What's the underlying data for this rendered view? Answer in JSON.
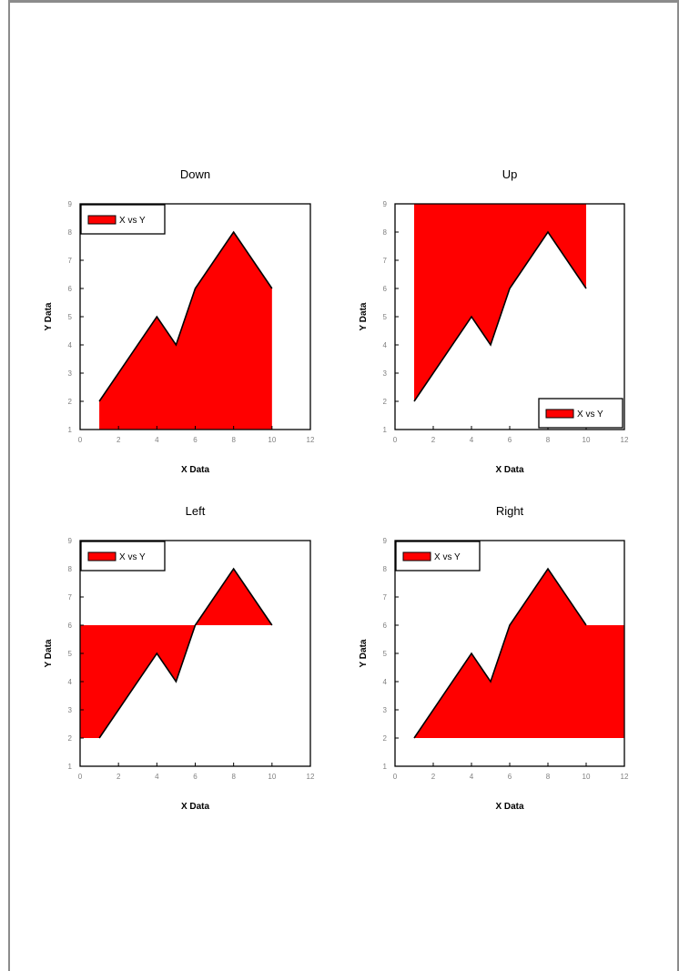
{
  "colors": {
    "fill": "#ff0000",
    "line": "#000000",
    "tick_text": "#808080",
    "frame": "#000000"
  },
  "chart_data": [
    {
      "type": "area",
      "title": "Down",
      "fill_direction": "down",
      "xlabel": "X Data",
      "ylabel": "Y Data",
      "xlim": [
        0,
        12
      ],
      "ylim": [
        1,
        9
      ],
      "xticks": [
        "0",
        "2",
        "4",
        "6",
        "8",
        "10",
        "12"
      ],
      "yticks": [
        "1",
        "2",
        "3",
        "4",
        "5",
        "6",
        "7",
        "8",
        "9"
      ],
      "legend": {
        "placement": "top-left",
        "label": "X vs Y"
      },
      "series": [
        {
          "name": "X vs Y",
          "x": [
            1,
            4,
            5,
            6,
            8,
            10
          ],
          "y": [
            2,
            5,
            4,
            6,
            8,
            6
          ]
        }
      ]
    },
    {
      "type": "area",
      "title": "Up",
      "fill_direction": "up",
      "xlabel": "X Data",
      "ylabel": "Y Data",
      "xlim": [
        0,
        12
      ],
      "ylim": [
        1,
        9
      ],
      "xticks": [
        "0",
        "2",
        "4",
        "6",
        "8",
        "10",
        "12"
      ],
      "yticks": [
        "1",
        "2",
        "3",
        "4",
        "5",
        "6",
        "7",
        "8",
        "9"
      ],
      "legend": {
        "placement": "bottom-right",
        "label": "X vs Y"
      },
      "series": [
        {
          "name": "X vs Y",
          "x": [
            1,
            4,
            5,
            6,
            8,
            10
          ],
          "y": [
            2,
            5,
            4,
            6,
            8,
            6
          ]
        }
      ]
    },
    {
      "type": "area",
      "title": "Left",
      "fill_direction": "left",
      "xlabel": "X Data",
      "ylabel": "Y Data",
      "xlim": [
        0,
        12
      ],
      "ylim": [
        1,
        9
      ],
      "xticks": [
        "0",
        "2",
        "4",
        "6",
        "8",
        "10",
        "12"
      ],
      "yticks": [
        "1",
        "2",
        "3",
        "4",
        "5",
        "6",
        "7",
        "8",
        "9"
      ],
      "legend": {
        "placement": "top-left",
        "label": "X vs Y"
      },
      "series": [
        {
          "name": "X vs Y",
          "x": [
            1,
            4,
            5,
            6,
            8,
            10
          ],
          "y": [
            2,
            5,
            4,
            6,
            8,
            6
          ]
        }
      ]
    },
    {
      "type": "area",
      "title": "Right",
      "fill_direction": "right",
      "xlabel": "X Data",
      "ylabel": "Y Data",
      "xlim": [
        0,
        12
      ],
      "ylim": [
        1,
        9
      ],
      "xticks": [
        "0",
        "2",
        "4",
        "6",
        "8",
        "10",
        "12"
      ],
      "yticks": [
        "1",
        "2",
        "3",
        "4",
        "5",
        "6",
        "7",
        "8",
        "9"
      ],
      "legend": {
        "placement": "top-left",
        "label": "X vs Y"
      },
      "series": [
        {
          "name": "X vs Y",
          "x": [
            1,
            4,
            5,
            6,
            8,
            10
          ],
          "y": [
            2,
            5,
            4,
            6,
            8,
            6
          ]
        }
      ]
    }
  ]
}
